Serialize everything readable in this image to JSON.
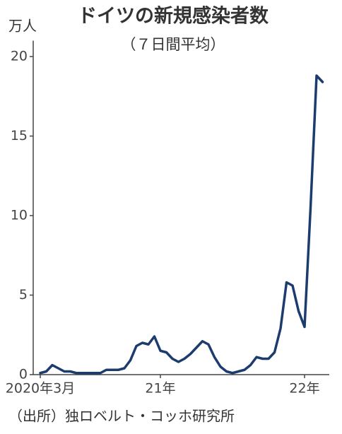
{
  "chart_data": {
    "type": "line",
    "title": "ドイツの新規感染者数",
    "subtitle": "（７日間平均）",
    "y_unit": "万人",
    "source": "（出所）独ロベルト・コッホ研究所",
    "categories": [
      "2020年3月",
      null,
      null,
      null,
      null,
      null,
      null,
      null,
      null,
      null,
      null,
      null,
      null,
      null,
      null,
      null,
      null,
      null,
      null,
      null,
      "21年",
      null,
      null,
      null,
      null,
      null,
      null,
      null,
      null,
      null,
      null,
      null,
      null,
      null,
      null,
      null,
      null,
      null,
      null,
      null,
      null,
      null,
      null,
      null,
      "22年",
      null,
      null,
      null
    ],
    "values": [
      0.1,
      0.2,
      0.6,
      0.4,
      0.2,
      0.2,
      0.1,
      0.1,
      0.1,
      0.1,
      0.1,
      0.3,
      0.3,
      0.3,
      0.4,
      0.9,
      1.8,
      2.0,
      1.9,
      2.4,
      1.5,
      1.4,
      1.0,
      0.8,
      1.0,
      1.3,
      1.7,
      2.1,
      1.9,
      1.1,
      0.5,
      0.2,
      0.1,
      0.2,
      0.3,
      0.6,
      1.1,
      1.0,
      1.0,
      1.4,
      2.9,
      5.8,
      5.6,
      4.0,
      3.0,
      10.5,
      18.8,
      18.4
    ],
    "color": "#1d3c6e",
    "ylim": [
      0,
      21
    ],
    "yticks": [
      0,
      5,
      10,
      15,
      20
    ]
  }
}
